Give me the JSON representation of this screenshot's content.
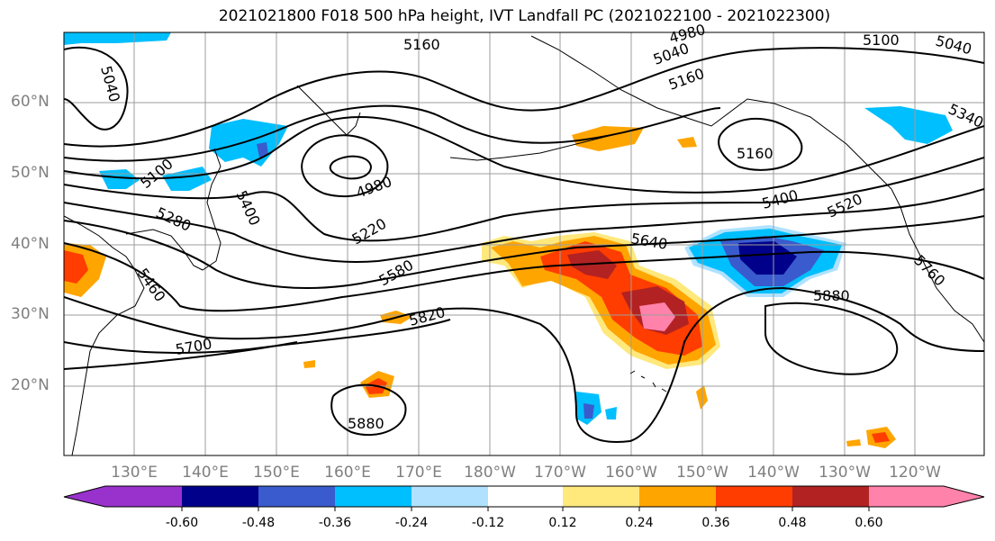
{
  "title": "2021021800 F018 500 hPa height, IVT Landfall PC (2021022100 - 2021022300)",
  "lat_labels": [
    "60°N",
    "50°N",
    "40°N",
    "30°N",
    "20°N"
  ],
  "lon_labels": [
    "130°E",
    "140°E",
    "150°E",
    "160°E",
    "170°E",
    "180°W",
    "170°W",
    "160°W",
    "150°W",
    "140°W",
    "130°W",
    "120°W"
  ],
  "contour_labels": [
    "5040",
    "5160",
    "4980",
    "5100",
    "5040",
    "5160",
    "5340",
    "5040",
    "5100",
    "4980",
    "5160",
    "5400",
    "5520",
    "5280",
    "5220",
    "5640",
    "5400",
    "5580",
    "5880",
    "5820",
    "5700",
    "5760",
    "5880",
    "5460"
  ],
  "colorbar": {
    "colors": [
      "#9932cc",
      "#00008b",
      "#3a5bcd",
      "#00bfff",
      "#b0e2ff",
      "#ffffff",
      "#ffe87c",
      "#ffa500",
      "#ff3d00",
      "#b22222",
      "#ff82ab"
    ],
    "tick_labels": [
      "-0.60",
      "-0.48",
      "-0.36",
      "-0.24",
      "-0.12",
      "0.12",
      "0.24",
      "0.36",
      "0.48",
      "0.60"
    ]
  },
  "colors": {
    "grid": "#9e9e9e",
    "contour": "#000000",
    "axis_label": "#7f7f7f"
  }
}
